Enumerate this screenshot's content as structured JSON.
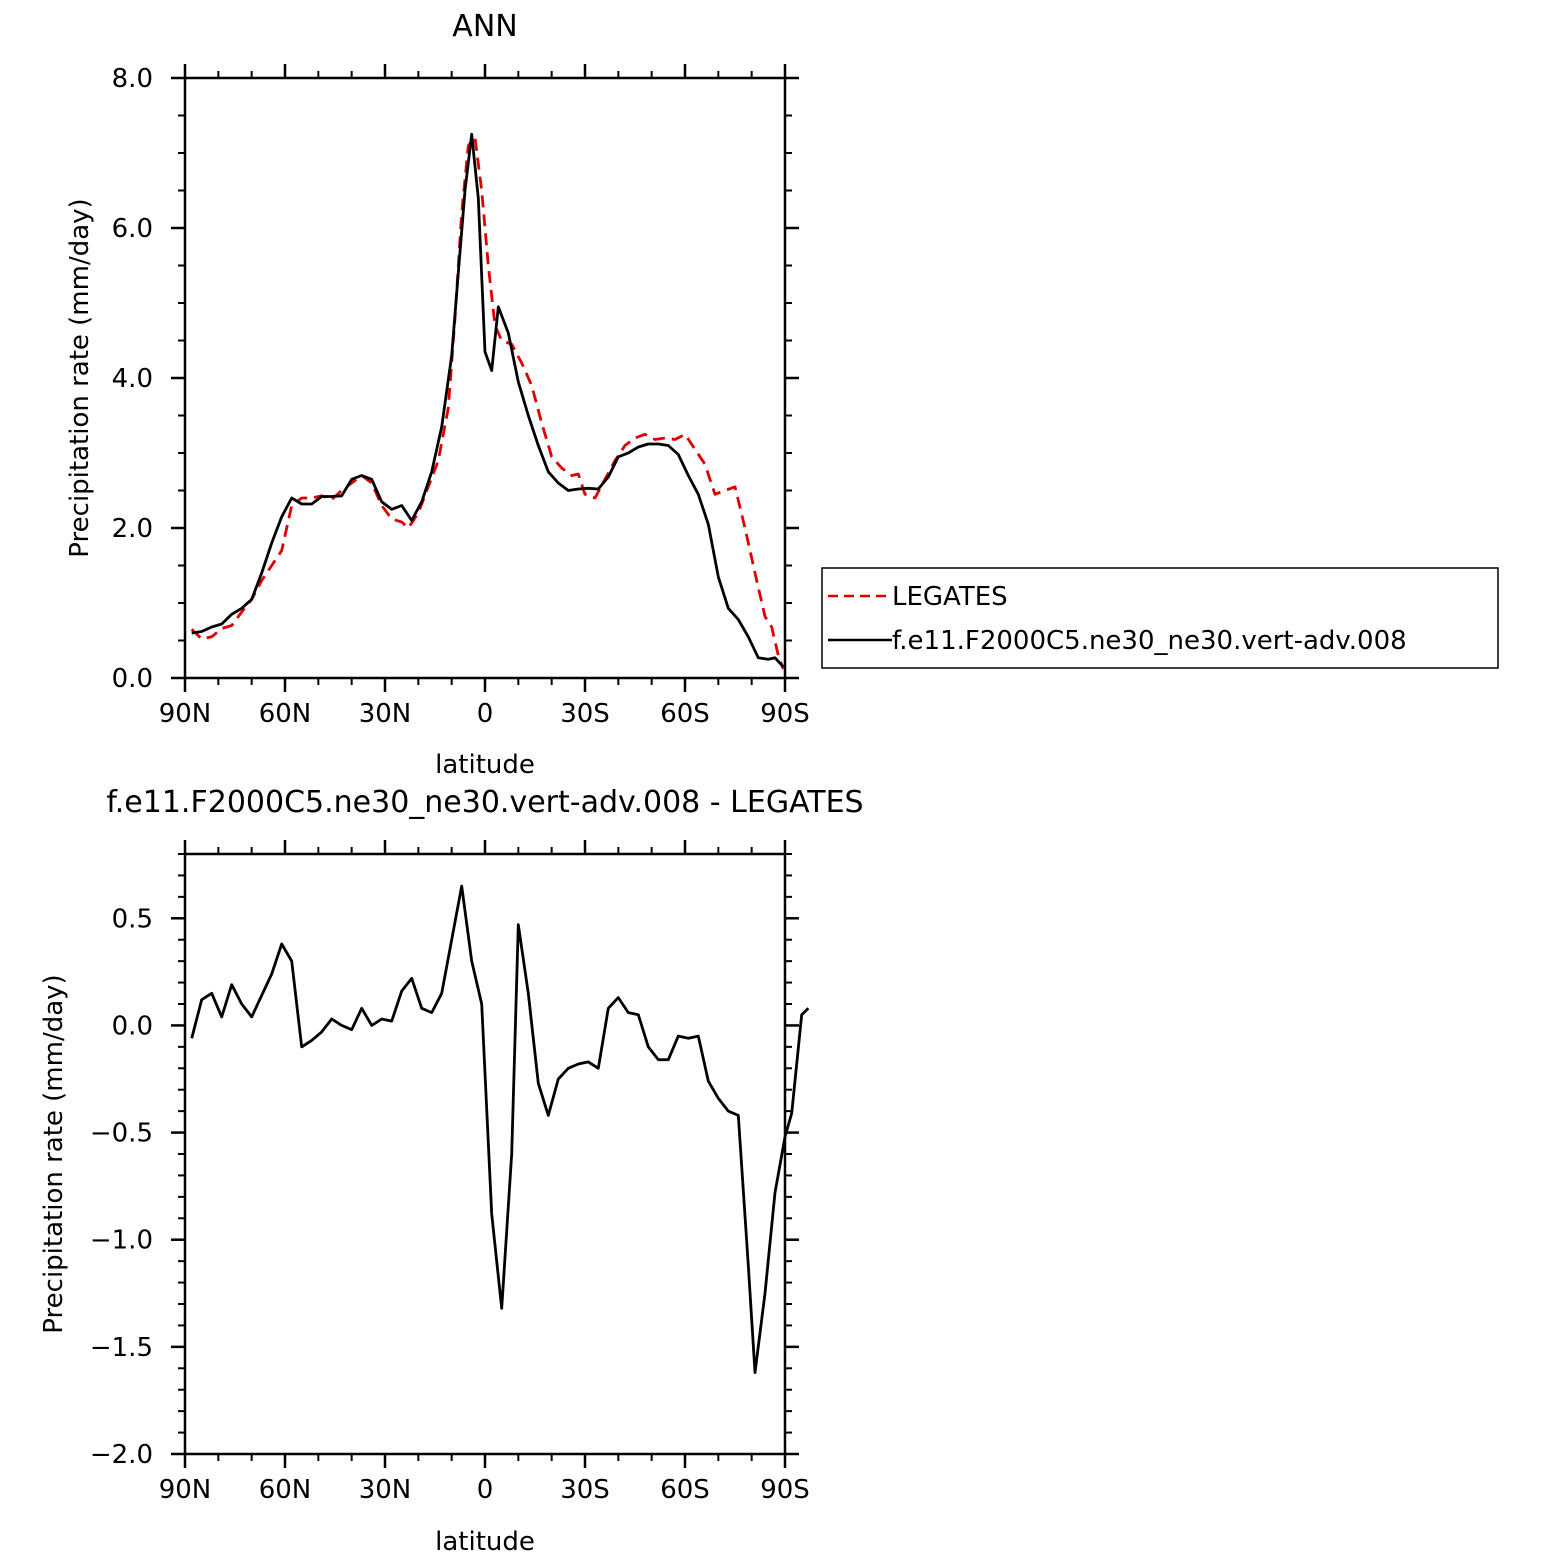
{
  "chart_data": [
    {
      "type": "line",
      "title": "ANN",
      "xlabel": "latitude",
      "ylabel": "Precipitation rate (mm/day)",
      "xlim": [
        90,
        -90
      ],
      "ylim": [
        0,
        8
      ],
      "x_ticks": [
        90,
        60,
        30,
        0,
        -30,
        -60,
        -90
      ],
      "x_tick_labels": [
        "90N",
        "60N",
        "30N",
        "0",
        "30S",
        "60S",
        "90S"
      ],
      "y_ticks": [
        0,
        2,
        4,
        6,
        8
      ],
      "y_tick_labels": [
        "0.0",
        "2.0",
        "4.0",
        "6.0",
        "8.0"
      ],
      "grid": false,
      "legend_position": "right",
      "series": [
        {
          "name": "LEGATES",
          "color": "#e00000",
          "dash": true,
          "points": [
            [
              88,
              0.65
            ],
            [
              85,
              0.52
            ],
            [
              82,
              0.55
            ],
            [
              79,
              0.66
            ],
            [
              76,
              0.7
            ],
            [
              73,
              0.88
            ],
            [
              70,
              1.05
            ],
            [
              67,
              1.3
            ],
            [
              64,
              1.5
            ],
            [
              61,
              1.7
            ],
            [
              58,
              2.3
            ],
            [
              55,
              2.4
            ],
            [
              52,
              2.4
            ],
            [
              49,
              2.43
            ],
            [
              46,
              2.38
            ],
            [
              43,
              2.5
            ],
            [
              40,
              2.6
            ],
            [
              37,
              2.7
            ],
            [
              34,
              2.6
            ],
            [
              31,
              2.3
            ],
            [
              28,
              2.12
            ],
            [
              25,
              2.08
            ],
            [
              23,
              2.0
            ],
            [
              20,
              2.2
            ],
            [
              17,
              2.55
            ],
            [
              14,
              2.9
            ],
            [
              11,
              3.6
            ],
            [
              9,
              4.8
            ],
            [
              7,
              6.2
            ],
            [
              5,
              7.1
            ],
            [
              3,
              7.2
            ],
            [
              1,
              6.5
            ],
            [
              -1,
              5.5
            ],
            [
              -3,
              4.7
            ],
            [
              -5,
              4.5
            ],
            [
              -8,
              4.45
            ],
            [
              -11,
              4.2
            ],
            [
              -14,
              3.9
            ],
            [
              -17,
              3.4
            ],
            [
              -20,
              2.95
            ],
            [
              -23,
              2.8
            ],
            [
              -26,
              2.7
            ],
            [
              -28,
              2.72
            ],
            [
              -30,
              2.45
            ],
            [
              -33,
              2.4
            ],
            [
              -36,
              2.65
            ],
            [
              -39,
              2.9
            ],
            [
              -42,
              3.1
            ],
            [
              -45,
              3.2
            ],
            [
              -48,
              3.25
            ],
            [
              -51,
              3.18
            ],
            [
              -54,
              3.2
            ],
            [
              -57,
              3.18
            ],
            [
              -60,
              3.25
            ],
            [
              -63,
              3.05
            ],
            [
              -66,
              2.85
            ],
            [
              -69,
              2.45
            ],
            [
              -72,
              2.5
            ],
            [
              -75,
              2.55
            ],
            [
              -78,
              2.0
            ],
            [
              -81,
              1.4
            ],
            [
              -84,
              0.82
            ],
            [
              -86,
              0.68
            ],
            [
              -88,
              0.3
            ],
            [
              -89.5,
              0.12
            ]
          ]
        },
        {
          "name": "f.e11.F2000C5.ne30_ne30.vert-adv.008",
          "color": "#000000",
          "dash": false,
          "points": [
            [
              88,
              0.6
            ],
            [
              85,
              0.62
            ],
            [
              82,
              0.68
            ],
            [
              79,
              0.72
            ],
            [
              76,
              0.85
            ],
            [
              73,
              0.93
            ],
            [
              70,
              1.05
            ],
            [
              67,
              1.4
            ],
            [
              64,
              1.8
            ],
            [
              61,
              2.15
            ],
            [
              58,
              2.4
            ],
            [
              55,
              2.32
            ],
            [
              52,
              2.32
            ],
            [
              49,
              2.42
            ],
            [
              46,
              2.42
            ],
            [
              43,
              2.43
            ],
            [
              40,
              2.65
            ],
            [
              37,
              2.7
            ],
            [
              34,
              2.65
            ],
            [
              31,
              2.35
            ],
            [
              28,
              2.25
            ],
            [
              25,
              2.3
            ],
            [
              22,
              2.1
            ],
            [
              19,
              2.35
            ],
            [
              16,
              2.75
            ],
            [
              13,
              3.35
            ],
            [
              10,
              4.3
            ],
            [
              8,
              5.4
            ],
            [
              6,
              6.5
            ],
            [
              4,
              7.25
            ],
            [
              2,
              6.4
            ],
            [
              0,
              4.35
            ],
            [
              -2,
              4.1
            ],
            [
              -4,
              4.95
            ],
            [
              -7,
              4.6
            ],
            [
              -10,
              3.95
            ],
            [
              -13,
              3.5
            ],
            [
              -16,
              3.1
            ],
            [
              -19,
              2.75
            ],
            [
              -22,
              2.6
            ],
            [
              -25,
              2.5
            ],
            [
              -28,
              2.52
            ],
            [
              -31,
              2.53
            ],
            [
              -34,
              2.52
            ],
            [
              -37,
              2.68
            ],
            [
              -40,
              2.95
            ],
            [
              -43,
              3.0
            ],
            [
              -46,
              3.08
            ],
            [
              -49,
              3.12
            ],
            [
              -52,
              3.12
            ],
            [
              -55,
              3.1
            ],
            [
              -58,
              2.98
            ],
            [
              -61,
              2.7
            ],
            [
              -64,
              2.45
            ],
            [
              -67,
              2.05
            ],
            [
              -70,
              1.35
            ],
            [
              -73,
              0.93
            ],
            [
              -76,
              0.78
            ],
            [
              -79,
              0.55
            ],
            [
              -82,
              0.27
            ],
            [
              -85,
              0.25
            ],
            [
              -87,
              0.27
            ],
            [
              -89.5,
              0.15
            ]
          ]
        }
      ]
    },
    {
      "type": "line",
      "title": "f.e11.F2000C5.ne30_ne30.vert-adv.008 - LEGATES",
      "xlabel": "latitude",
      "ylabel": "Precipitation rate (mm/day)",
      "xlim": [
        90,
        -90
      ],
      "ylim": [
        -2,
        0.8
      ],
      "x_ticks": [
        90,
        60,
        30,
        0,
        -30,
        -60,
        -90
      ],
      "x_tick_labels": [
        "90N",
        "60N",
        "30N",
        "0",
        "30S",
        "60S",
        "90S"
      ],
      "y_ticks": [
        -2,
        -1.5,
        -1,
        -0.5,
        0,
        0.5
      ],
      "y_tick_labels": [
        "−2.0",
        "−1.5",
        "−1.0",
        "−0.5",
        "0.0",
        "0.5"
      ],
      "grid": false,
      "series": [
        {
          "color": "#000000",
          "dash": false,
          "points": [
            [
              88,
              -0.06
            ],
            [
              85,
              0.12
            ],
            [
              82,
              0.15
            ],
            [
              79,
              0.04
            ],
            [
              76,
              0.19
            ],
            [
              73,
              0.1
            ],
            [
              70,
              0.04
            ],
            [
              67,
              0.14
            ],
            [
              64,
              0.24
            ],
            [
              61,
              0.38
            ],
            [
              58,
              0.3
            ],
            [
              55,
              -0.1
            ],
            [
              52,
              -0.07
            ],
            [
              49,
              -0.03
            ],
            [
              46,
              0.03
            ],
            [
              43,
              0.0
            ],
            [
              40,
              -0.02
            ],
            [
              37,
              0.08
            ],
            [
              34,
              0.0
            ],
            [
              31,
              0.03
            ],
            [
              28,
              0.02
            ],
            [
              25,
              0.16
            ],
            [
              22,
              0.22
            ],
            [
              19,
              0.08
            ],
            [
              16,
              0.06
            ],
            [
              13,
              0.15
            ],
            [
              10,
              0.4
            ],
            [
              7,
              0.65
            ],
            [
              4,
              0.3
            ],
            [
              1,
              0.1
            ],
            [
              -2,
              -0.88
            ],
            [
              -5,
              -1.32
            ],
            [
              -8,
              -0.6
            ],
            [
              -10,
              0.47
            ],
            [
              -13,
              0.15
            ],
            [
              -16,
              -0.27
            ],
            [
              -19,
              -0.42
            ],
            [
              -22,
              -0.25
            ],
            [
              -25,
              -0.2
            ],
            [
              -28,
              -0.18
            ],
            [
              -31,
              -0.17
            ],
            [
              -34,
              -0.2
            ],
            [
              -37,
              0.08
            ],
            [
              -40,
              0.13
            ],
            [
              -43,
              0.06
            ],
            [
              -46,
              0.05
            ],
            [
              -49,
              -0.1
            ],
            [
              -52,
              -0.16
            ],
            [
              -55,
              -0.16
            ],
            [
              -58,
              -0.05
            ],
            [
              -61,
              -0.06
            ],
            [
              -64,
              -0.05
            ],
            [
              -67,
              -0.26
            ],
            [
              -70,
              -0.34
            ],
            [
              -73,
              -0.4
            ],
            [
              -76,
              -0.42
            ],
            [
              -79,
              -1.12
            ],
            [
              -81,
              -1.62
            ],
            [
              -84,
              -1.25
            ],
            [
              -87,
              -0.78
            ],
            [
              -90,
              -0.52
            ],
            [
              -92,
              -0.41
            ],
            [
              -95,
              0.05
            ],
            [
              -97,
              0.08
            ]
          ]
        }
      ]
    }
  ]
}
